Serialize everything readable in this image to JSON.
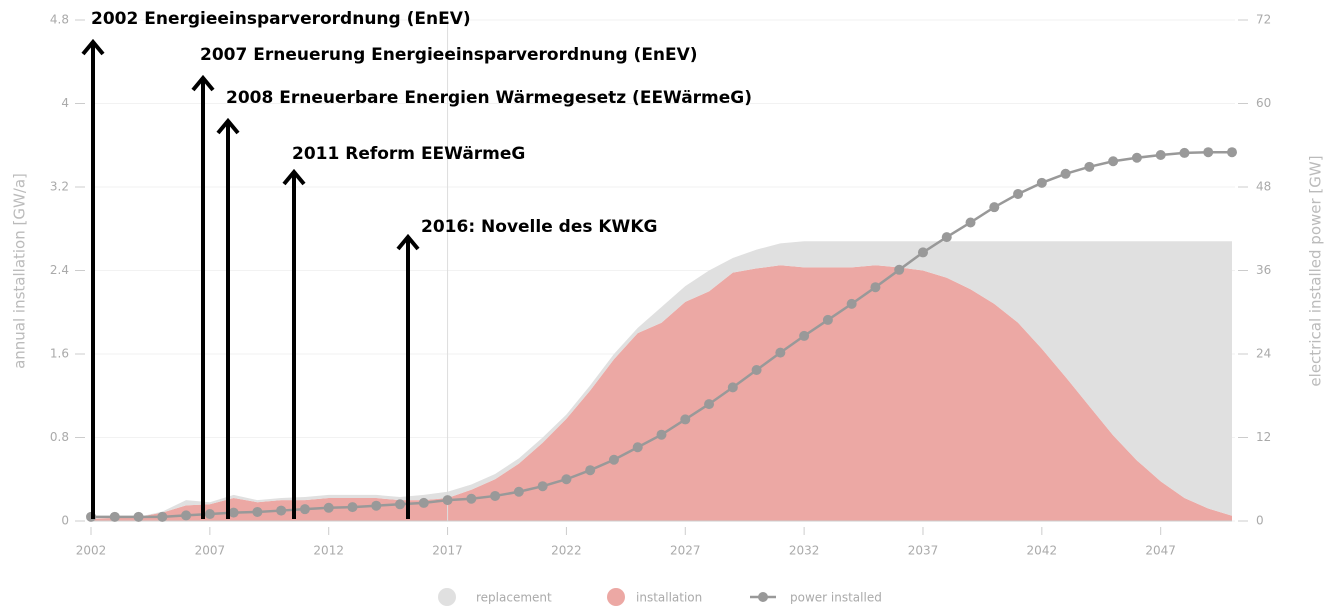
{
  "chart_data": {
    "type": "area",
    "stacked": true,
    "y_label": "annual installation [GW/a]",
    "y2_label": "electrical installed power [GW]",
    "x": [
      2002,
      2003,
      2004,
      2005,
      2006,
      2007,
      2008,
      2009,
      2010,
      2011,
      2012,
      2013,
      2014,
      2015,
      2016,
      2017,
      2018,
      2019,
      2020,
      2021,
      2022,
      2023,
      2024,
      2025,
      2026,
      2027,
      2028,
      2029,
      2030,
      2031,
      2032,
      2033,
      2034,
      2035,
      2036,
      2037,
      2038,
      2039,
      2040,
      2041,
      2042,
      2043,
      2044,
      2045,
      2046,
      2047,
      2048,
      2049,
      2050
    ],
    "series": [
      {
        "name": "replacement",
        "color": "#e0e0e0",
        "values": [
          0,
          0,
          0,
          0.01,
          0.05,
          0.02,
          0.03,
          0.02,
          0.02,
          0.03,
          0.03,
          0.03,
          0.03,
          0.03,
          0.05,
          0.06,
          0.05,
          0.05,
          0.05,
          0.05,
          0.04,
          0.05,
          0.05,
          0.05,
          0.15,
          0.15,
          0.2,
          0.14,
          0.18,
          0.21,
          0.25,
          0.25,
          0.25,
          0.23,
          0.25,
          0.28,
          0.35,
          0.46,
          0.6,
          0.78,
          1.03,
          1.3,
          1.58,
          1.86,
          2.1,
          2.3,
          2.46,
          2.56,
          2.63
        ]
      },
      {
        "name": "installation",
        "color": "#eca8a4",
        "values": [
          0.02,
          0.03,
          0.04,
          0.08,
          0.15,
          0.16,
          0.22,
          0.18,
          0.2,
          0.2,
          0.22,
          0.22,
          0.22,
          0.2,
          0.2,
          0.22,
          0.3,
          0.4,
          0.55,
          0.75,
          0.98,
          1.25,
          1.55,
          1.8,
          1.9,
          2.1,
          2.2,
          2.38,
          2.42,
          2.45,
          2.43,
          2.43,
          2.43,
          2.45,
          2.43,
          2.4,
          2.33,
          2.22,
          2.08,
          1.9,
          1.65,
          1.38,
          1.1,
          0.82,
          0.58,
          0.38,
          0.22,
          0.12,
          0.05
        ]
      },
      {
        "name": "power installed",
        "color": "#999999",
        "type": "line",
        "axis": "y2",
        "values": [
          0.6,
          0.6,
          0.6,
          0.6,
          0.8,
          1.0,
          1.2,
          1.3,
          1.5,
          1.7,
          1.9,
          2.0,
          2.2,
          2.4,
          2.6,
          3.0,
          3.2,
          3.6,
          4.2,
          5.0,
          6.0,
          7.3,
          8.8,
          10.6,
          12.4,
          14.6,
          16.8,
          19.2,
          21.7,
          24.2,
          26.6,
          28.9,
          31.2,
          33.6,
          36.1,
          38.6,
          40.8,
          42.9,
          45.1,
          47.0,
          48.6,
          49.9,
          50.9,
          51.7,
          52.2,
          52.6,
          52.9,
          53.0,
          53.0
        ]
      }
    ],
    "xlim": [
      2002,
      2050
    ],
    "xticks": [
      2002,
      2007,
      2012,
      2017,
      2022,
      2027,
      2032,
      2037,
      2042,
      2047
    ],
    "ylim": [
      0,
      4.8
    ],
    "yticks": [
      0,
      0.8,
      1.6,
      2.4,
      3.2,
      4,
      4.8
    ],
    "y2lim": [
      0,
      72
    ],
    "y2ticks": [
      0,
      12,
      24,
      36,
      48,
      60,
      72
    ],
    "grid": true,
    "annotations": [
      "2002 Energieeinsparverordnung (EnEV)",
      "2007 Erneuerung Energieeinsparverordnung (EnEV)",
      "2008 Erneuerbare Energien Wärmegesetz (EEWärmeG)",
      "2011 Reform EEWärmeG",
      "2016: Novelle des KWKG"
    ]
  }
}
